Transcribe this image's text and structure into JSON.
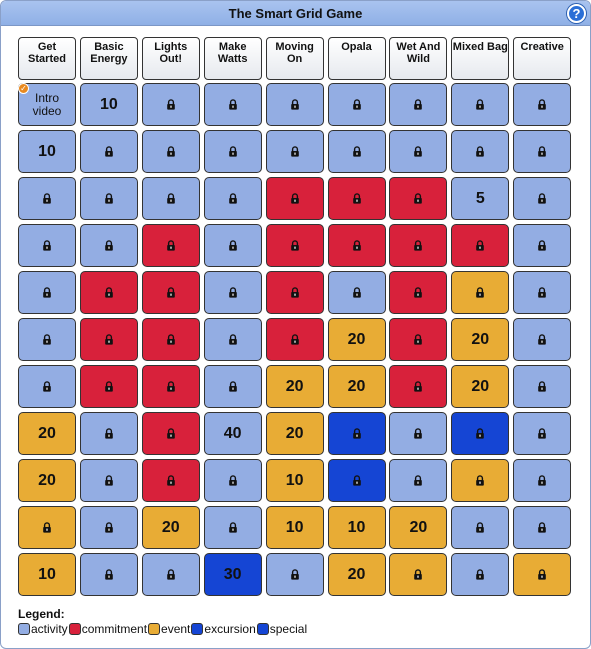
{
  "title": "The Smart Grid Game",
  "help_label": "?",
  "icons": {
    "lock": "lock-icon",
    "check": "checkmark-icon",
    "help": "question-mark-icon"
  },
  "colors": {
    "activity": "#93ade3",
    "commitment": "#d8213b",
    "event": "#e8ac35",
    "excursion": "#1545d4",
    "special": "#1545d4"
  },
  "columns": [
    {
      "label": "Get\nStarted"
    },
    {
      "label": "Basic\nEnergy"
    },
    {
      "label": "Lights\nOut!"
    },
    {
      "label": "Make\nWatts"
    },
    {
      "label": "Moving\nOn"
    },
    {
      "label": "Opala"
    },
    {
      "label": "Wet And\nWild"
    },
    {
      "label": "Mixed Bag"
    },
    {
      "label": "Creative"
    }
  ],
  "rows": [
    [
      {
        "type": "activity",
        "label": "Intro\nvideo",
        "completed": true
      },
      {
        "type": "activity",
        "points": "10"
      },
      {
        "type": "activity",
        "locked": true
      },
      {
        "type": "activity",
        "locked": true
      },
      {
        "type": "activity",
        "locked": true
      },
      {
        "type": "activity",
        "locked": true
      },
      {
        "type": "activity",
        "locked": true
      },
      {
        "type": "activity",
        "locked": true
      },
      {
        "type": "activity",
        "locked": true
      }
    ],
    [
      {
        "type": "activity",
        "points": "10"
      },
      {
        "type": "activity",
        "locked": true
      },
      {
        "type": "activity",
        "locked": true
      },
      {
        "type": "activity",
        "locked": true
      },
      {
        "type": "activity",
        "locked": true
      },
      {
        "type": "activity",
        "locked": true
      },
      {
        "type": "activity",
        "locked": true
      },
      {
        "type": "activity",
        "locked": true
      },
      {
        "type": "activity",
        "locked": true
      }
    ],
    [
      {
        "type": "activity",
        "locked": true
      },
      {
        "type": "activity",
        "locked": true
      },
      {
        "type": "activity",
        "locked": true
      },
      {
        "type": "activity",
        "locked": true
      },
      {
        "type": "commitment",
        "locked": true
      },
      {
        "type": "commitment",
        "locked": true
      },
      {
        "type": "commitment",
        "locked": true
      },
      {
        "type": "activity",
        "points": "5"
      },
      {
        "type": "activity",
        "locked": true
      }
    ],
    [
      {
        "type": "activity",
        "locked": true
      },
      {
        "type": "activity",
        "locked": true
      },
      {
        "type": "commitment",
        "locked": true
      },
      {
        "type": "activity",
        "locked": true
      },
      {
        "type": "commitment",
        "locked": true
      },
      {
        "type": "commitment",
        "locked": true
      },
      {
        "type": "commitment",
        "locked": true
      },
      {
        "type": "commitment",
        "locked": true
      },
      {
        "type": "activity",
        "locked": true
      }
    ],
    [
      {
        "type": "activity",
        "locked": true
      },
      {
        "type": "commitment",
        "locked": true
      },
      {
        "type": "commitment",
        "locked": true
      },
      {
        "type": "activity",
        "locked": true
      },
      {
        "type": "commitment",
        "locked": true
      },
      {
        "type": "activity",
        "locked": true
      },
      {
        "type": "commitment",
        "locked": true
      },
      {
        "type": "event",
        "locked": true
      },
      {
        "type": "activity",
        "locked": true
      }
    ],
    [
      {
        "type": "activity",
        "locked": true
      },
      {
        "type": "commitment",
        "locked": true
      },
      {
        "type": "commitment",
        "locked": true
      },
      {
        "type": "activity",
        "locked": true
      },
      {
        "type": "commitment",
        "locked": true
      },
      {
        "type": "event",
        "points": "20"
      },
      {
        "type": "commitment",
        "locked": true
      },
      {
        "type": "event",
        "points": "20"
      },
      {
        "type": "activity",
        "locked": true
      }
    ],
    [
      {
        "type": "activity",
        "locked": true
      },
      {
        "type": "commitment",
        "locked": true
      },
      {
        "type": "commitment",
        "locked": true
      },
      {
        "type": "activity",
        "locked": true
      },
      {
        "type": "event",
        "points": "20"
      },
      {
        "type": "event",
        "points": "20"
      },
      {
        "type": "commitment",
        "locked": true
      },
      {
        "type": "event",
        "points": "20"
      },
      {
        "type": "activity",
        "locked": true
      }
    ],
    [
      {
        "type": "event",
        "points": "20"
      },
      {
        "type": "activity",
        "locked": true
      },
      {
        "type": "commitment",
        "locked": true
      },
      {
        "type": "activity",
        "points": "40"
      },
      {
        "type": "event",
        "points": "20"
      },
      {
        "type": "excursion",
        "locked": true
      },
      {
        "type": "activity",
        "locked": true
      },
      {
        "type": "excursion",
        "locked": true
      },
      {
        "type": "activity",
        "locked": true
      }
    ],
    [
      {
        "type": "event",
        "points": "20"
      },
      {
        "type": "activity",
        "locked": true
      },
      {
        "type": "commitment",
        "locked": true
      },
      {
        "type": "activity",
        "locked": true
      },
      {
        "type": "event",
        "points": "10"
      },
      {
        "type": "excursion",
        "locked": true
      },
      {
        "type": "activity",
        "locked": true
      },
      {
        "type": "event",
        "locked": true
      },
      {
        "type": "activity",
        "locked": true
      }
    ],
    [
      {
        "type": "event",
        "locked": true
      },
      {
        "type": "activity",
        "locked": true
      },
      {
        "type": "event",
        "points": "20"
      },
      {
        "type": "activity",
        "locked": true
      },
      {
        "type": "event",
        "points": "10"
      },
      {
        "type": "event",
        "points": "10"
      },
      {
        "type": "event",
        "points": "20"
      },
      {
        "type": "activity",
        "locked": true
      },
      {
        "type": "activity",
        "locked": true
      }
    ],
    [
      {
        "type": "event",
        "points": "10"
      },
      {
        "type": "activity",
        "locked": true
      },
      {
        "type": "activity",
        "locked": true
      },
      {
        "type": "excursion",
        "points": "30"
      },
      {
        "type": "activity",
        "locked": true
      },
      {
        "type": "event",
        "points": "20"
      },
      {
        "type": "event",
        "locked": true
      },
      {
        "type": "activity",
        "locked": true
      },
      {
        "type": "event",
        "locked": true
      }
    ]
  ],
  "legend": {
    "title": "Legend:",
    "items": [
      {
        "key": "activity",
        "label": "activity"
      },
      {
        "key": "commitment",
        "label": "commitment"
      },
      {
        "key": "event",
        "label": "event"
      },
      {
        "key": "excursion",
        "label": "excursion"
      },
      {
        "key": "special",
        "label": "special"
      }
    ]
  }
}
